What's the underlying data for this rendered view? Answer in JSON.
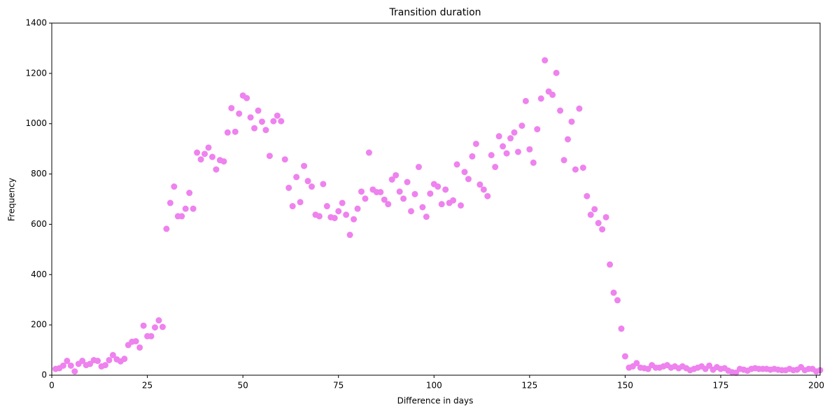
{
  "chart_data": {
    "type": "scatter",
    "title": "Transition duration",
    "x_label": "Difference in days",
    "y_label": "Frequency",
    "color": "#ee82ee",
    "x": [
      1,
      2,
      3,
      4,
      5,
      6,
      7,
      8,
      9,
      10,
      11,
      12,
      13,
      14,
      15,
      16,
      17,
      18,
      19,
      20,
      21,
      22,
      23,
      24,
      25,
      26,
      27,
      28,
      29,
      30,
      31,
      32,
      33,
      34,
      35,
      36,
      37,
      38,
      39,
      40,
      41,
      42,
      43,
      44,
      45,
      46,
      47,
      48,
      49,
      50,
      51,
      52,
      53,
      54,
      55,
      56,
      57,
      58,
      59,
      60,
      61,
      62,
      63,
      64,
      65,
      66,
      67,
      68,
      69,
      70,
      71,
      72,
      73,
      74,
      75,
      76,
      77,
      78,
      79,
      80,
      81,
      82,
      83,
      84,
      85,
      86,
      87,
      88,
      89,
      90,
      91,
      92,
      93,
      94,
      95,
      96,
      97,
      98,
      99,
      100,
      101,
      102,
      103,
      104,
      105,
      106,
      107,
      108,
      109,
      110,
      111,
      112,
      113,
      114,
      115,
      116,
      117,
      118,
      119,
      120,
      121,
      122,
      123,
      124,
      125,
      126,
      127,
      128,
      129,
      130,
      131,
      132,
      133,
      134,
      135,
      136,
      137,
      138,
      139,
      140,
      141,
      142,
      143,
      144,
      145,
      146,
      147,
      148,
      149,
      150,
      151,
      152,
      153,
      154,
      155,
      156,
      157,
      158,
      159,
      160,
      161,
      162,
      163,
      164,
      165,
      166,
      167,
      168,
      169,
      170,
      171,
      172,
      173,
      174,
      175,
      176,
      177,
      178,
      179,
      180,
      181,
      182,
      183,
      184,
      185,
      186,
      187,
      188,
      189,
      190,
      191,
      192,
      193,
      194,
      195,
      196,
      197,
      198,
      199,
      200,
      201
    ],
    "values": [
      25,
      28,
      38,
      57,
      38,
      15,
      45,
      57,
      40,
      45,
      60,
      57,
      35,
      40,
      60,
      80,
      63,
      55,
      65,
      120,
      133,
      135,
      110,
      197,
      155,
      155,
      190,
      218,
      192,
      582,
      685,
      750,
      632,
      632,
      662,
      725,
      662,
      885,
      858,
      880,
      905,
      868,
      818,
      855,
      850,
      965,
      1062,
      968,
      1040,
      1112,
      1102,
      1025,
      982,
      1052,
      1008,
      975,
      872,
      1010,
      1032,
      1010,
      858,
      745,
      672,
      788,
      688,
      832,
      772,
      750,
      638,
      632,
      760,
      672,
      628,
      625,
      652,
      685,
      638,
      558,
      620,
      662,
      730,
      702,
      885,
      738,
      728,
      728,
      698,
      680,
      778,
      795,
      730,
      702,
      768,
      652,
      720,
      828,
      668,
      630,
      722,
      760,
      750,
      680,
      738,
      685,
      695,
      838,
      675,
      808,
      780,
      870,
      920,
      758,
      738,
      712,
      875,
      828,
      950,
      910,
      882,
      942,
      965,
      888,
      992,
      1090,
      898,
      845,
      978,
      1100,
      1252,
      1128,
      1115,
      1202,
      1052,
      855,
      938,
      1008,
      818,
      1060,
      825,
      712,
      638,
      660,
      605,
      580,
      628,
      440,
      328,
      298,
      185,
      75,
      30,
      35,
      48,
      30,
      28,
      25,
      40,
      30,
      30,
      35,
      40,
      30,
      35,
      28,
      35,
      28,
      20,
      25,
      30,
      35,
      25,
      38,
      22,
      32,
      25,
      28,
      18,
      12,
      10,
      25,
      22,
      18,
      25,
      28,
      25,
      25,
      25,
      22,
      25,
      22,
      20,
      20,
      25,
      20,
      22,
      32,
      20,
      25,
      25,
      15,
      20
    ],
    "xlim": [
      0,
      201
    ],
    "ylim": [
      0,
      1400
    ],
    "xticks": [
      0,
      25,
      50,
      75,
      100,
      125,
      150,
      175,
      200
    ],
    "yticks": [
      0,
      200,
      400,
      600,
      800,
      1000,
      1200,
      1400
    ]
  }
}
